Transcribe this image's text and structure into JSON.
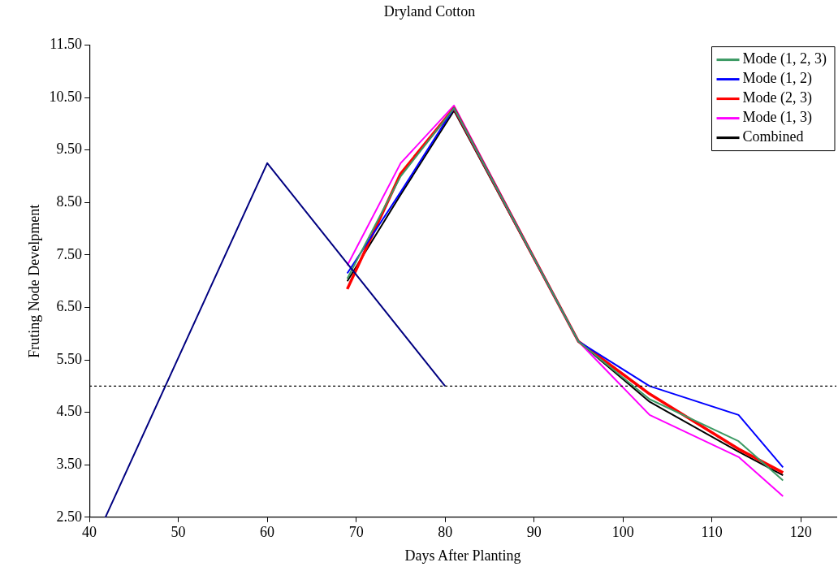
{
  "chart_data": {
    "type": "line",
    "title": "Dryland Cotton",
    "xlabel": "Days After Planting",
    "ylabel": "Fruting Node Develpment",
    "xlim": [
      40,
      124
    ],
    "xticks": [
      40,
      50,
      60,
      70,
      80,
      90,
      100,
      110,
      120
    ],
    "ylim": [
      2.5,
      11.5
    ],
    "yticks": [
      {
        "value": 2.5,
        "label": "2.50"
      },
      {
        "value": 3.5,
        "label": "3.50"
      },
      {
        "value": 4.5,
        "label": "4.50"
      },
      {
        "value": 5.5,
        "label": "5.50"
      },
      {
        "value": 6.5,
        "label": "6.50"
      },
      {
        "value": 7.5,
        "label": "7.50"
      },
      {
        "value": 8.5,
        "label": "8.50"
      },
      {
        "value": 9.5,
        "label": "9.50"
      },
      {
        "value": 10.5,
        "label": "10.50"
      },
      {
        "value": 11.5,
        "label": "11.50"
      }
    ],
    "grid": false,
    "legend": "top right",
    "marker": "none",
    "line_style": "solid",
    "ref_lines": [
      {
        "axis": "y",
        "value": 5.0,
        "color": "#000000",
        "line_style": "dotted"
      }
    ],
    "series": [
      {
        "color": "#000080",
        "x": [
          41.8,
          60,
          80
        ],
        "values": [
          2.5,
          9.25,
          5.0
        ]
      },
      {
        "name": "Mode (1, 2, 3)",
        "color": "#3c9a64",
        "x": [
          69,
          75,
          81,
          95,
          103,
          113,
          118
        ],
        "values": [
          7.05,
          9.0,
          10.3,
          5.85,
          4.75,
          3.95,
          3.2
        ]
      },
      {
        "name": "Mode (1, 2)",
        "color": "#0000ff",
        "x": [
          69,
          75,
          81,
          95,
          103,
          113,
          118
        ],
        "values": [
          7.15,
          8.7,
          10.3,
          5.85,
          5.0,
          4.45,
          3.45
        ]
      },
      {
        "name": "Mode (2, 3)",
        "color": "#ff0000",
        "x": [
          69,
          75,
          81,
          95,
          103,
          113,
          118
        ],
        "values": [
          6.85,
          9.05,
          10.3,
          5.85,
          4.85,
          3.8,
          3.35
        ]
      },
      {
        "name": "Mode (1, 3)",
        "color": "#ff00ff",
        "x": [
          69,
          75,
          81,
          95,
          103,
          113,
          118
        ],
        "values": [
          7.3,
          9.25,
          10.35,
          5.85,
          4.45,
          3.65,
          2.9
        ]
      },
      {
        "name": "Combined",
        "color": "#000000",
        "x": [
          69,
          75,
          81,
          95,
          103,
          113,
          118
        ],
        "values": [
          7.0,
          8.65,
          10.25,
          5.85,
          4.7,
          3.75,
          3.3
        ]
      }
    ]
  }
}
